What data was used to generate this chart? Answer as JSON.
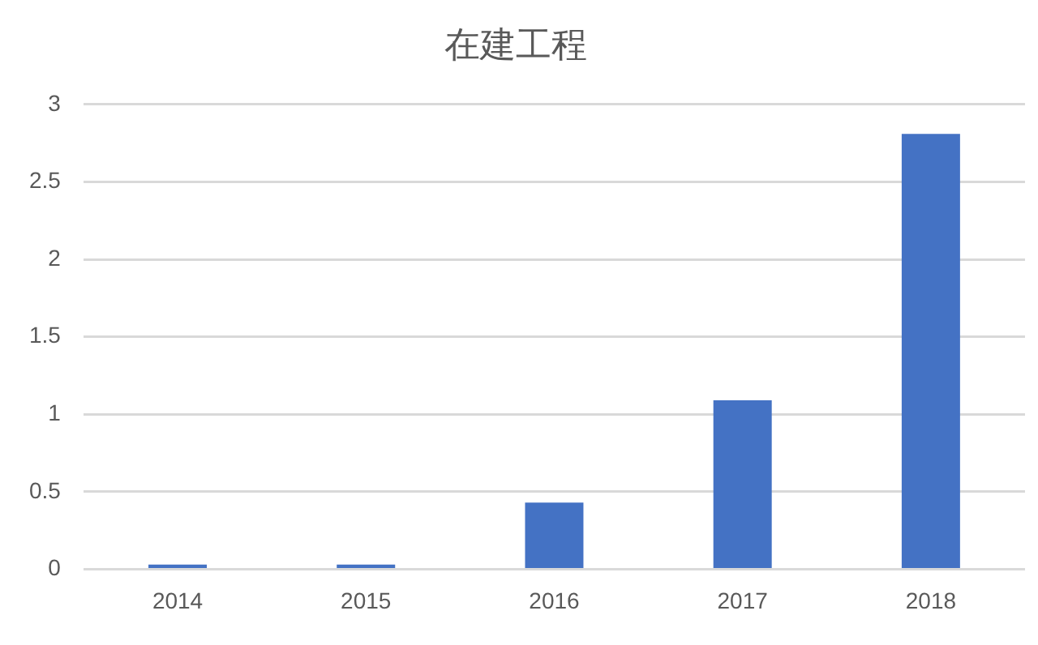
{
  "chart_data": {
    "type": "bar",
    "title": "在建工程",
    "categories": [
      "2014",
      "2015",
      "2016",
      "2017",
      "2018"
    ],
    "values": [
      0.03,
      0.03,
      0.43,
      1.09,
      2.81
    ],
    "color": "#4472c4",
    "ylim": [
      0,
      3
    ],
    "yticks": [
      0,
      0.5,
      1,
      1.5,
      2,
      2.5,
      3
    ],
    "grid": "y",
    "legend": false
  }
}
